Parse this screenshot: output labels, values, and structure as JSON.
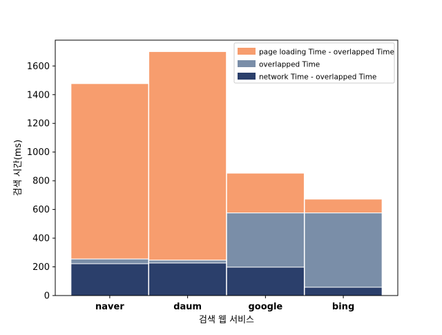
{
  "chart_data": {
    "type": "bar",
    "stacked": true,
    "categories": [
      "naver",
      "daum",
      "google",
      "bing"
    ],
    "series": [
      {
        "name": "network Time - overlapped Time",
        "color": "#2b3f6b",
        "values": [
          222,
          227,
          198,
          58
        ]
      },
      {
        "name": "overlapped Time",
        "color": "#7a8ea8",
        "values": [
          33,
          20,
          378,
          518
        ]
      },
      {
        "name": "page loading Time - overlapped Time",
        "color": "#f79d6e",
        "values": [
          1222,
          1453,
          277,
          96
        ]
      }
    ],
    "xlabel": "검색 웹 서비스",
    "ylabel": "검색 시간(ms)",
    "ylim": [
      0,
      1780
    ],
    "yticks": [
      0,
      200,
      400,
      600,
      800,
      1000,
      1200,
      1400,
      1600
    ],
    "grid": false,
    "legend_position": "upper right",
    "legend_order": [
      2,
      1,
      0
    ]
  }
}
